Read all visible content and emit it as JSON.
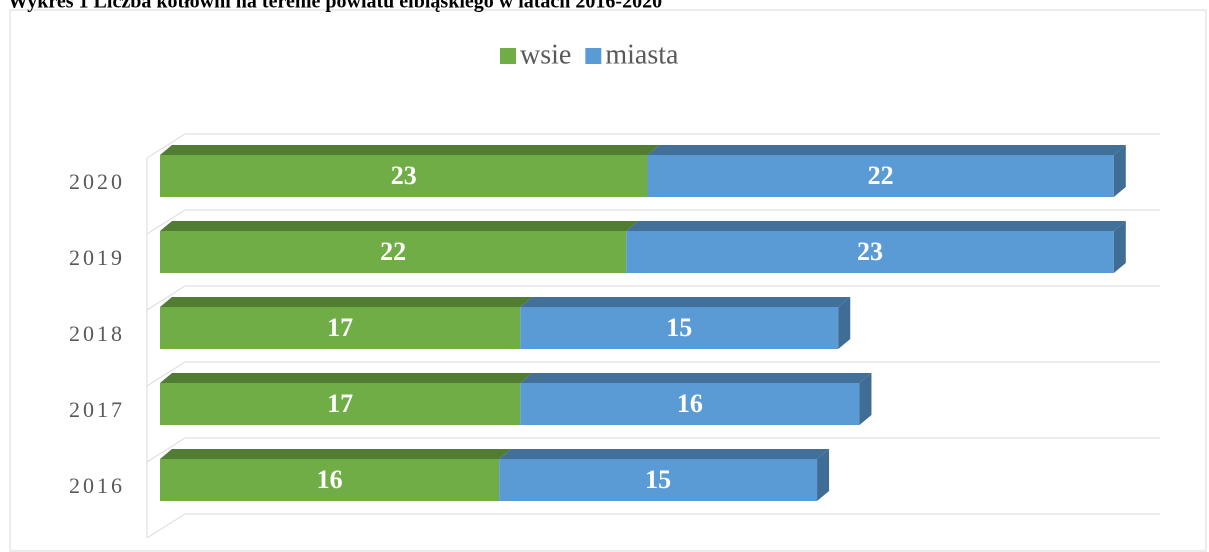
{
  "chart_data": {
    "type": "stacked-bar-horizontal",
    "title": "Wykres 1 Liczba kotłowni na terenie powiatu elbląskiego w latach 2016-2020",
    "categories": [
      "2016",
      "2017",
      "2018",
      "2019",
      "2020"
    ],
    "series": [
      {
        "name": "wsie",
        "color": "#70ad47",
        "values": [
          16,
          17,
          17,
          22,
          23
        ]
      },
      {
        "name": "miasta",
        "color": "#5b9bd5",
        "values": [
          15,
          16,
          15,
          23,
          22
        ]
      }
    ],
    "xlim": [
      0,
      46
    ],
    "grid": true,
    "legend": "top"
  }
}
